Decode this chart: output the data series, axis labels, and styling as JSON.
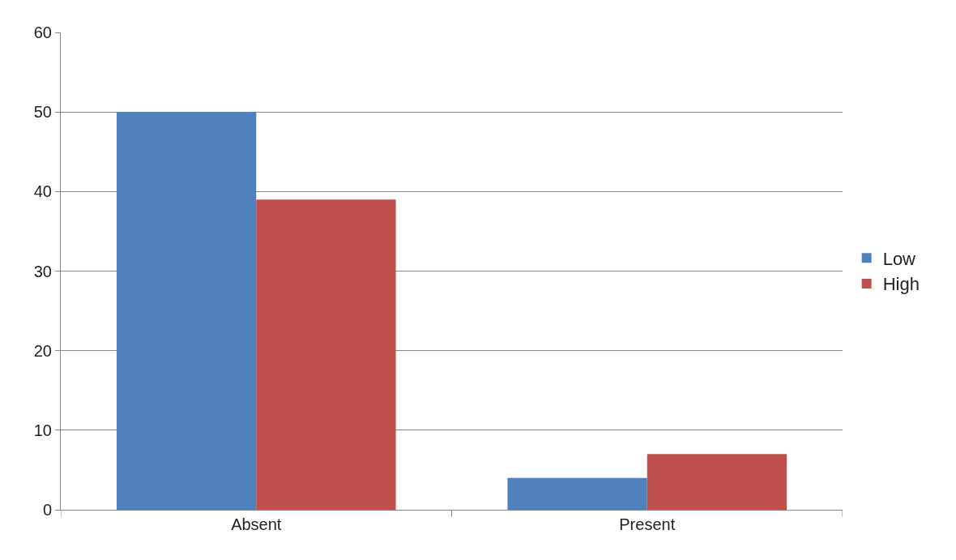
{
  "chart_data": {
    "type": "bar",
    "categories": [
      "Absent",
      "Present"
    ],
    "series": [
      {
        "name": "Low",
        "color": "#4f81bd",
        "values": [
          50,
          4
        ]
      },
      {
        "name": "High",
        "color": "#c0504d",
        "values": [
          39,
          7
        ]
      }
    ],
    "ylim": [
      0,
      60
    ],
    "yticks": [
      0,
      10,
      20,
      30,
      40,
      50,
      60
    ],
    "grid": "y",
    "legend": "right"
  }
}
